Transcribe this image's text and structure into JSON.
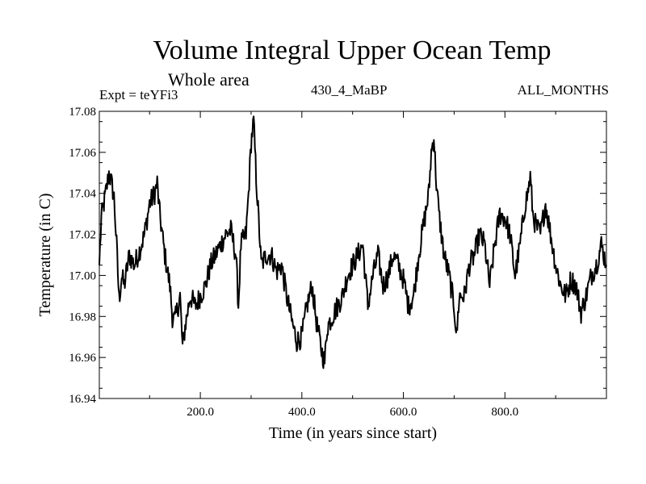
{
  "header": {
    "title": "Volume Integral Upper Ocean Temp",
    "subtitle": "Whole area",
    "experiment": "Expt = teYFi3",
    "experiment_name": "430_4_MaBP",
    "months": "ALL_MONTHS"
  },
  "chart_data": {
    "type": "line",
    "title": "Volume Integral Upper Ocean Temp",
    "xlabel": "Time (in years since start)",
    "ylabel": "Temperature (in C)",
    "xlim": [
      1,
      1000
    ],
    "ylim": [
      16.94,
      17.08
    ],
    "xticks": [
      200,
      400,
      600,
      800
    ],
    "xtick_labels": [
      "200.0",
      "400.0",
      "600.0",
      "800.0"
    ],
    "yticks": [
      16.94,
      16.96,
      16.98,
      17.0,
      17.02,
      17.04,
      17.06,
      17.08
    ],
    "ytick_labels": [
      "16.94",
      "16.96",
      "16.98",
      "17.00",
      "17.02",
      "17.04",
      "17.06",
      "17.08"
    ],
    "grid": false,
    "series": [
      {
        "name": "Volume integral upper ocean temperature",
        "color": "#000000",
        "x": [
          1,
          5,
          10,
          15,
          20,
          25,
          30,
          35,
          40,
          45,
          50,
          60,
          70,
          80,
          90,
          100,
          110,
          115,
          120,
          130,
          140,
          145,
          150,
          160,
          165,
          170,
          180,
          190,
          200,
          210,
          220,
          230,
          240,
          250,
          260,
          270,
          275,
          280,
          290,
          295,
          300,
          305,
          310,
          320,
          330,
          340,
          350,
          360,
          370,
          380,
          390,
          400,
          410,
          420,
          430,
          440,
          445,
          450,
          460,
          470,
          480,
          490,
          500,
          510,
          520,
          530,
          540,
          550,
          560,
          570,
          580,
          590,
          600,
          610,
          620,
          630,
          640,
          650,
          655,
          660,
          665,
          670,
          680,
          690,
          700,
          705,
          710,
          720,
          730,
          740,
          750,
          760,
          770,
          780,
          790,
          800,
          810,
          820,
          830,
          840,
          845,
          850,
          855,
          860,
          870,
          880,
          890,
          900,
          910,
          920,
          930,
          940,
          950,
          960,
          970,
          980,
          990,
          1000
        ],
        "values": [
          17.005,
          17.028,
          17.035,
          17.042,
          17.05,
          17.045,
          17.038,
          17.015,
          16.988,
          17.0,
          16.995,
          17.01,
          17.005,
          17.012,
          17.02,
          17.035,
          17.04,
          17.045,
          17.03,
          17.01,
          16.995,
          16.98,
          16.978,
          16.99,
          16.965,
          16.975,
          16.99,
          16.985,
          16.99,
          16.995,
          17.005,
          17.01,
          17.015,
          17.02,
          17.022,
          17.01,
          16.985,
          17.015,
          17.02,
          17.04,
          17.065,
          17.075,
          17.048,
          17.005,
          17.01,
          17.01,
          17.002,
          17.005,
          16.99,
          16.978,
          16.968,
          16.97,
          16.985,
          16.995,
          16.975,
          16.962,
          16.958,
          16.975,
          16.98,
          16.985,
          16.99,
          17.0,
          17.005,
          17.01,
          17.015,
          16.985,
          17.0,
          17.01,
          16.995,
          17.0,
          17.01,
          17.005,
          16.998,
          16.985,
          16.99,
          17.01,
          17.025,
          17.04,
          17.06,
          17.068,
          17.045,
          17.03,
          17.01,
          17.0,
          16.985,
          16.97,
          16.99,
          16.99,
          17.005,
          17.01,
          17.02,
          17.015,
          16.995,
          17.015,
          17.03,
          17.028,
          17.02,
          17.0,
          17.015,
          17.035,
          17.04,
          17.048,
          17.03,
          17.025,
          17.02,
          17.035,
          17.02,
          17.005,
          16.995,
          16.99,
          16.998,
          16.995,
          16.982,
          16.99,
          17.0,
          17.005,
          17.015,
          17.005
        ]
      }
    ]
  }
}
